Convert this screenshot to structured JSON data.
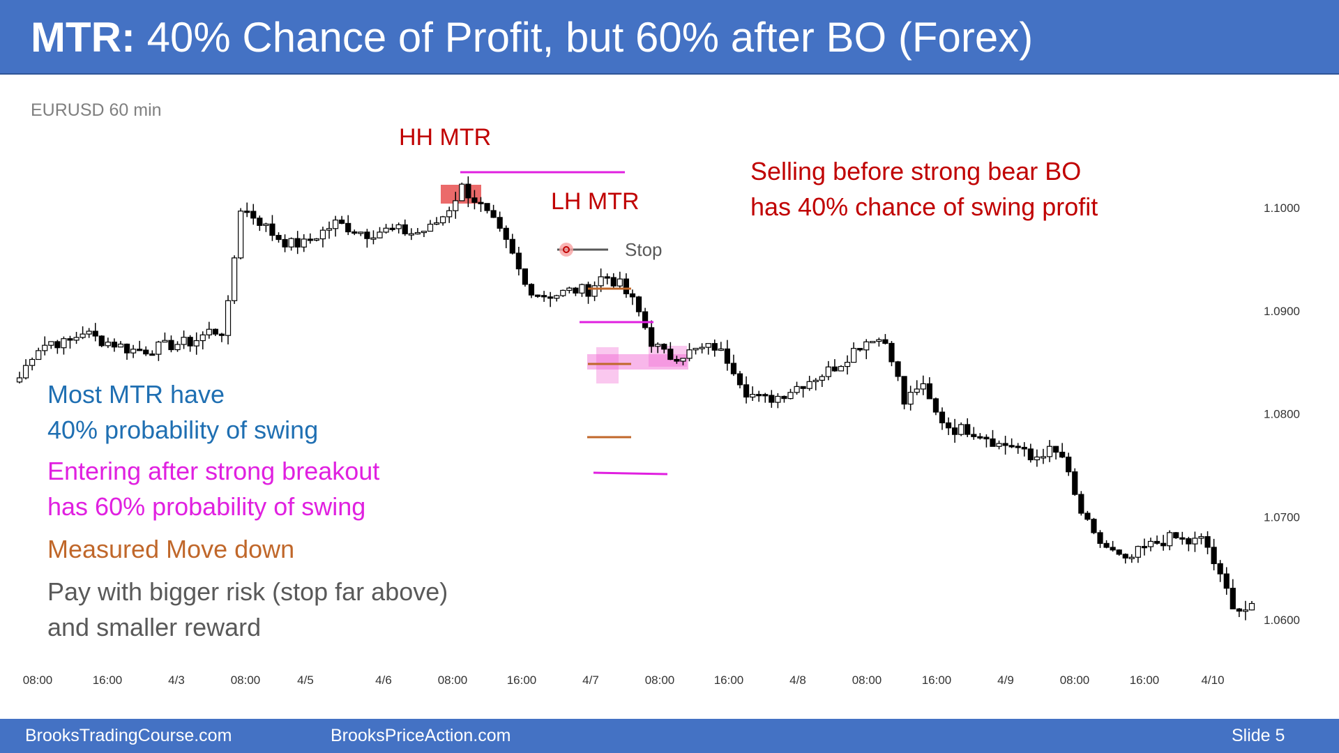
{
  "slide": {
    "title_bold": "MTR:",
    "title_rest": " 40% Chance of Profit, but 60% after BO (Forex)",
    "footer_left": "BrooksTradingCourse.com",
    "footer_mid": "BrooksPriceAction.com",
    "footer_right": "Slide  5",
    "colors": {
      "header": "#4472c4",
      "red": "#c00000",
      "magenta": "#e020e0",
      "blue": "#1f6fb2",
      "orange": "#c0672a",
      "gray": "#595959"
    }
  },
  "chart_data": {
    "type": "candlestick",
    "subtitle": "EURUSD 60 min",
    "y_ticks": [
      "1.1000",
      "1.0900",
      "1.0800",
      "1.0700",
      "1.0600"
    ],
    "x_ticks": [
      "08:00",
      "16:00",
      "4/3",
      "08:00",
      "4/5",
      "4/6",
      "08:00",
      "16:00",
      "4/7",
      "08:00",
      "16:00",
      "4/8",
      "08:00",
      "16:00",
      "4/9",
      "08:00",
      "16:00",
      "4/10"
    ],
    "ylim": [
      1.058,
      1.1035
    ],
    "close_path": [
      1.0835,
      1.0863,
      1.087,
      1.0868,
      1.088,
      1.0872,
      1.0868,
      1.0862,
      1.0862,
      1.0865,
      1.0868,
      1.087,
      1.088,
      1.088,
      1.1,
      1.099,
      1.0975,
      1.0965,
      1.0965,
      1.0975,
      1.0985,
      1.098,
      1.0975,
      1.0978,
      1.0978,
      1.0975,
      1.098,
      1.0995,
      1.102,
      1.1005,
      1.0985,
      1.096,
      1.0925,
      1.0915,
      1.0916,
      1.092,
      1.092,
      1.0935,
      1.0925,
      1.0905,
      1.087,
      1.0855,
      1.0858,
      1.0862,
      1.0865,
      1.085,
      1.0822,
      1.0813,
      1.0817,
      1.0825,
      1.0833,
      1.084,
      1.085,
      1.0865,
      1.0875,
      1.0868,
      1.081,
      1.083,
      1.08,
      1.0785,
      1.0785,
      1.078,
      1.077,
      1.077,
      1.0755,
      1.0765,
      1.0758,
      1.071,
      1.068,
      1.0668,
      1.0655,
      1.0668,
      1.0675,
      1.068,
      1.0675,
      1.0678,
      1.064,
      1.061,
      1.061
    ],
    "annotations": {
      "hh_mtr": "HH MTR",
      "lh_mtr": "LH MTR",
      "stop": "Stop",
      "selling_line1": "Selling before strong bear BO",
      "selling_line2": "has 40% chance of swing profit",
      "most_line1": "Most MTR have",
      "most_line2": "40% probability of swing",
      "entering_line1": "Entering after strong breakout",
      "entering_line2": "has 60% probability of swing",
      "measured": "Measured Move down",
      "pay_line1": "Pay with bigger risk (stop far above)",
      "pay_line2": "and smaller reward"
    }
  }
}
